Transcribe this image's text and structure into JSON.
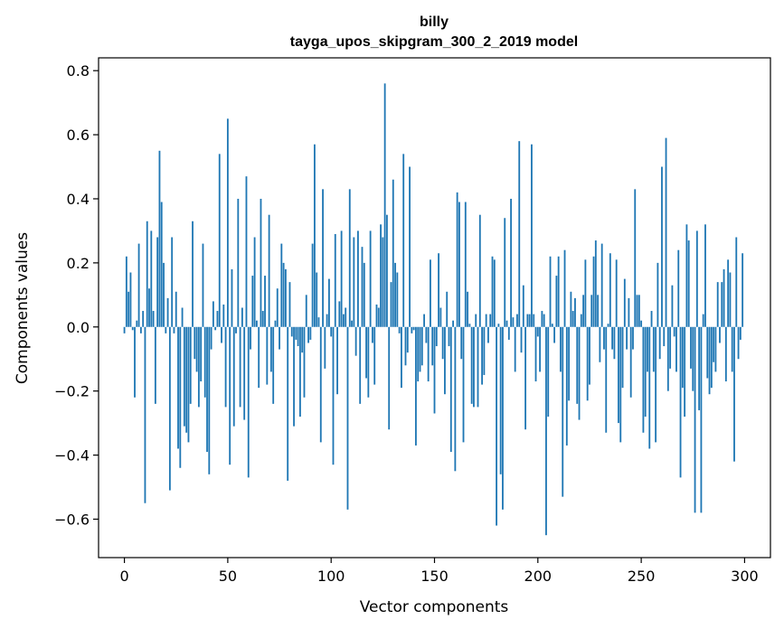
{
  "chart_data": {
    "type": "bar",
    "title": "billy",
    "subtitle": "tayga_upos_skipgram_300_2_2019 model",
    "xlabel": "Vector components",
    "ylabel": "Components values",
    "xlim": [
      -12.5,
      312.5
    ],
    "ylim": [
      -0.72,
      0.84
    ],
    "xticks": [
      0,
      50,
      100,
      150,
      200,
      250,
      300
    ],
    "xtick_labels": [
      "0",
      "50",
      "100",
      "150",
      "200",
      "250",
      "300"
    ],
    "yticks": [
      -0.6,
      -0.4,
      -0.2,
      0.0,
      0.2,
      0.4,
      0.6,
      0.8
    ],
    "ytick_labels": [
      "−0.6",
      "−0.4",
      "−0.2",
      "0.0",
      "0.2",
      "0.4",
      "0.6",
      "0.8"
    ],
    "grid": false,
    "bar_color": "#1f77b4",
    "values": [
      -0.02,
      0.22,
      0.11,
      0.17,
      -0.01,
      -0.22,
      0.02,
      0.26,
      -0.02,
      0.05,
      -0.55,
      0.33,
      0.12,
      0.3,
      0.05,
      -0.24,
      0.28,
      0.55,
      0.39,
      0.2,
      -0.02,
      0.09,
      -0.51,
      0.28,
      -0.02,
      0.11,
      -0.38,
      -0.44,
      0.06,
      -0.31,
      -0.33,
      -0.36,
      -0.24,
      0.33,
      -0.1,
      -0.14,
      -0.25,
      -0.17,
      0.26,
      -0.22,
      -0.39,
      -0.46,
      -0.07,
      0.08,
      -0.01,
      0.05,
      0.54,
      -0.05,
      0.07,
      -0.25,
      0.65,
      -0.43,
      0.18,
      -0.31,
      -0.02,
      0.4,
      -0.25,
      0.06,
      -0.29,
      0.47,
      -0.47,
      -0.07,
      0.16,
      0.28,
      0.02,
      -0.19,
      0.4,
      0.05,
      0.16,
      -0.18,
      0.35,
      -0.14,
      -0.24,
      0.02,
      0.12,
      -0.07,
      0.26,
      0.2,
      0.18,
      -0.48,
      0.14,
      -0.03,
      -0.31,
      -0.04,
      -0.06,
      -0.28,
      -0.08,
      -0.22,
      0.1,
      -0.05,
      -0.04,
      0.26,
      0.57,
      0.17,
      0.03,
      -0.36,
      0.43,
      -0.13,
      0.04,
      0.15,
      -0.03,
      -0.43,
      0.29,
      -0.21,
      0.08,
      0.3,
      0.04,
      0.06,
      -0.57,
      0.43,
      0.02,
      0.28,
      -0.09,
      0.3,
      -0.24,
      0.25,
      0.2,
      -0.16,
      -0.22,
      0.3,
      -0.05,
      -0.18,
      0.07,
      0.06,
      0.32,
      0.28,
      0.76,
      0.35,
      -0.32,
      0.14,
      0.46,
      0.2,
      0.17,
      -0.02,
      -0.19,
      0.54,
      -0.12,
      -0.08,
      0.5,
      -0.02,
      -0.01,
      -0.37,
      -0.17,
      -0.14,
      -0.12,
      0.04,
      -0.05,
      -0.17,
      0.21,
      -0.12,
      -0.27,
      -0.06,
      0.23,
      0.06,
      -0.1,
      -0.21,
      0.11,
      -0.06,
      -0.39,
      0.02,
      -0.45,
      0.42,
      0.39,
      -0.1,
      -0.36,
      0.39,
      0.11,
      0.01,
      -0.24,
      -0.25,
      0.04,
      -0.25,
      0.35,
      -0.18,
      -0.15,
      0.04,
      -0.05,
      0.04,
      0.22,
      0.21,
      -0.62,
      0.01,
      -0.46,
      -0.57,
      0.34,
      0.02,
      -0.04,
      0.4,
      0.03,
      -0.14,
      0.04,
      0.58,
      -0.08,
      0.13,
      -0.32,
      0.04,
      0.04,
      0.57,
      0.04,
      -0.17,
      -0.03,
      -0.14,
      0.05,
      0.04,
      -0.65,
      -0.28,
      0.22,
      0.01,
      -0.05,
      0.16,
      0.22,
      -0.14,
      -0.53,
      0.24,
      -0.37,
      -0.23,
      0.11,
      0.05,
      0.09,
      -0.24,
      -0.29,
      0.04,
      0.1,
      0.21,
      -0.23,
      -0.18,
      0.1,
      0.22,
      0.27,
      0.1,
      -0.11,
      0.26,
      -0.07,
      -0.33,
      0.01,
      0.23,
      -0.07,
      -0.1,
      0.21,
      -0.3,
      -0.36,
      -0.19,
      0.15,
      -0.07,
      0.09,
      -0.22,
      -0.07,
      0.43,
      0.1,
      0.1,
      0.02,
      -0.33,
      -0.28,
      -0.14,
      -0.38,
      0.05,
      -0.14,
      -0.36,
      0.2,
      -0.1,
      0.5,
      -0.06,
      0.59,
      -0.2,
      -0.13,
      0.13,
      -0.03,
      -0.14,
      0.24,
      -0.47,
      -0.19,
      -0.28,
      0.32,
      0.27,
      -0.13,
      -0.2,
      -0.58,
      0.3,
      -0.26,
      -0.58,
      0.04,
      0.32,
      -0.16,
      -0.21,
      -0.19,
      -0.11,
      -0.14,
      0.14,
      -0.05,
      0.14,
      0.18,
      -0.17,
      0.21,
      0.17,
      -0.14,
      -0.42,
      0.28,
      -0.1,
      -0.04,
      0.23
    ]
  }
}
